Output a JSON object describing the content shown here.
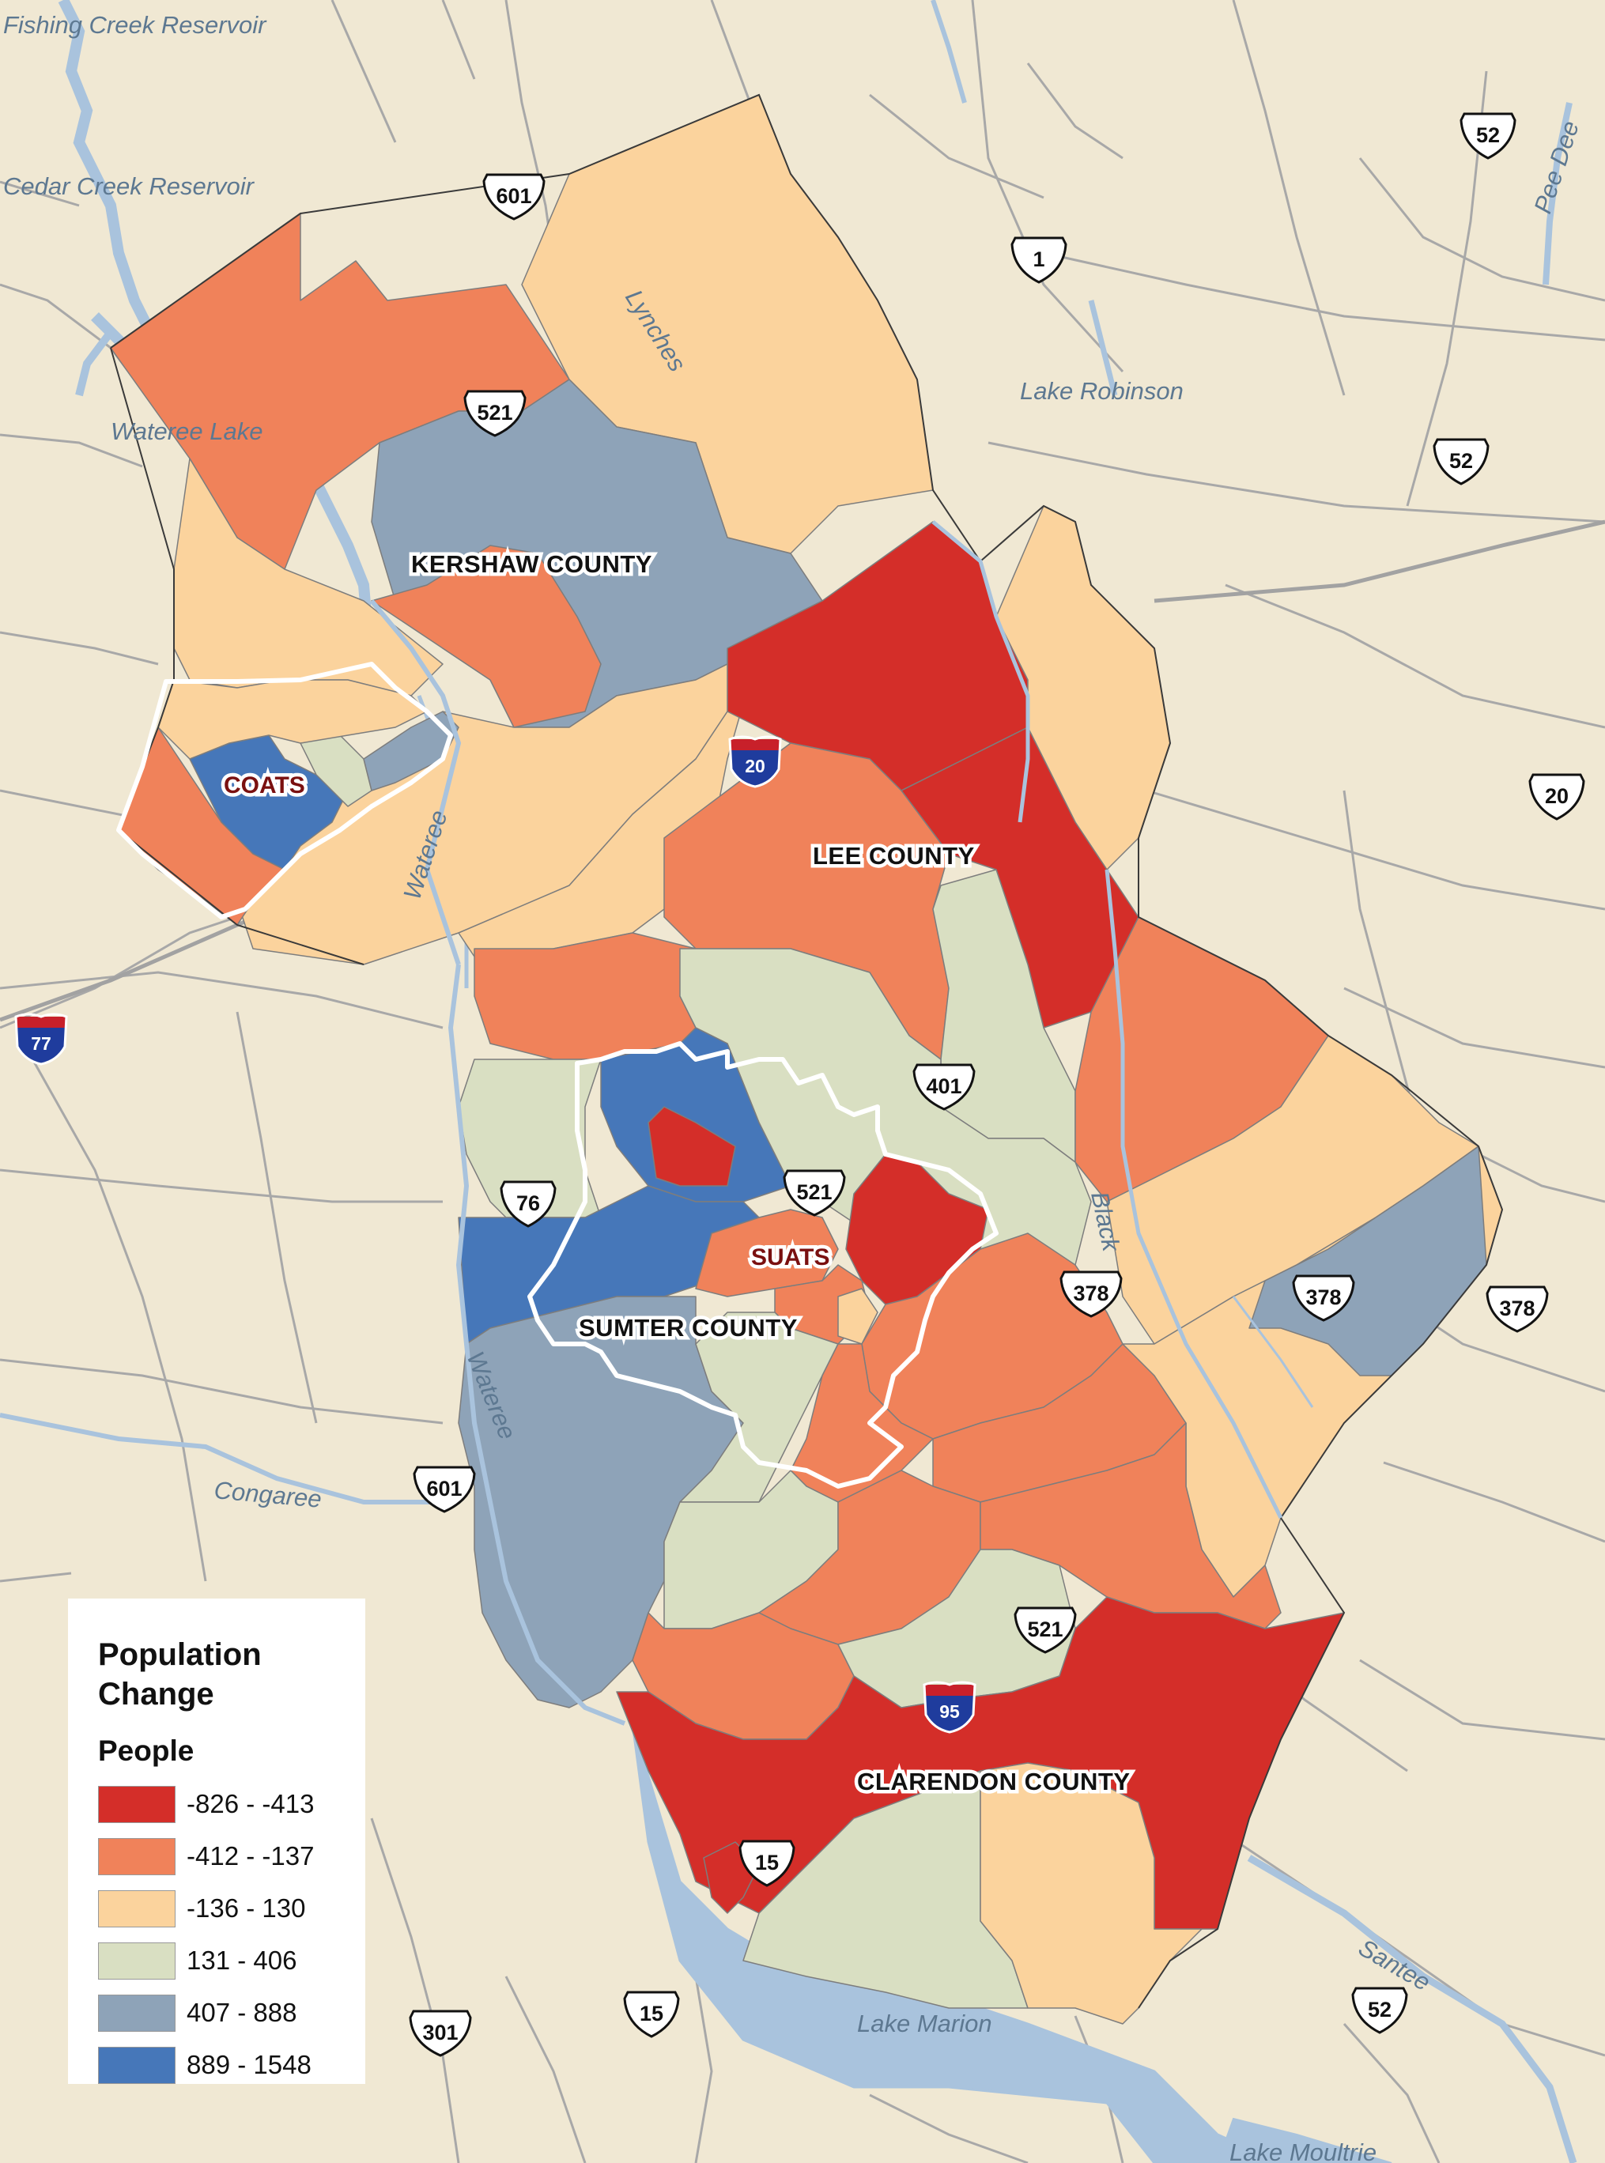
{
  "legend": {
    "title": "Population Change",
    "subtitle": "People",
    "classes": [
      {
        "label": "-826 - -413",
        "color": "#d42e29"
      },
      {
        "label": "-412 - -137",
        "color": "#f0825a"
      },
      {
        "label": "-136 - 130",
        "color": "#fbd39d"
      },
      {
        "label": "131 - 406",
        "color": "#d9dfc2"
      },
      {
        "label": "407 - 888",
        "color": "#8ea3b8"
      },
      {
        "label": "889 - 1548",
        "color": "#4677b9"
      }
    ]
  },
  "counties": {
    "kershaw": "KERSHAW COUNTY",
    "lee": "LEE COUNTY",
    "sumter": "SUMTER COUNTY",
    "clarendon": "CLARENDON COUNTY"
  },
  "study_areas": {
    "coats": "COATS",
    "suats": "SUATS"
  },
  "water_labels": {
    "fishing_creek": "Fishing Creek Reservoir",
    "cedar_creek": "Cedar Creek Reservoir",
    "wateree_lake": "Wateree Lake",
    "lynches": "Lynches",
    "lake_robinson": "Lake Robinson",
    "pee_dee": "Pee Dee",
    "wateree_river_north": "Wateree",
    "wateree_river_south": "Wateree",
    "black": "Black",
    "congaree": "Congaree",
    "santee": "Santee",
    "lake_marion": "Lake Marion",
    "lake_moultrie": "Lake Moultrie"
  },
  "route_shields": {
    "us601_north": "601",
    "us52_ne": "52",
    "us1": "1",
    "us521_north": "521",
    "us52_mid": "52",
    "us20_east": "20",
    "us401": "401",
    "us521_sumter": "521",
    "us76": "76",
    "us378_center": "378",
    "us378_east": "378",
    "us378_far_east": "378",
    "us601_south": "601",
    "us521_south": "521",
    "us15_north": "15",
    "us301": "301",
    "us15_south": "15",
    "us52_south": "52"
  },
  "interstate_shields": {
    "i20": "20",
    "i77": "77",
    "i95": "95"
  },
  "map_colors": {
    "background": "#f0e8d3",
    "water": "#a9c3dd",
    "roads": "#a7a7a7",
    "region_outline": "#ffffff"
  }
}
